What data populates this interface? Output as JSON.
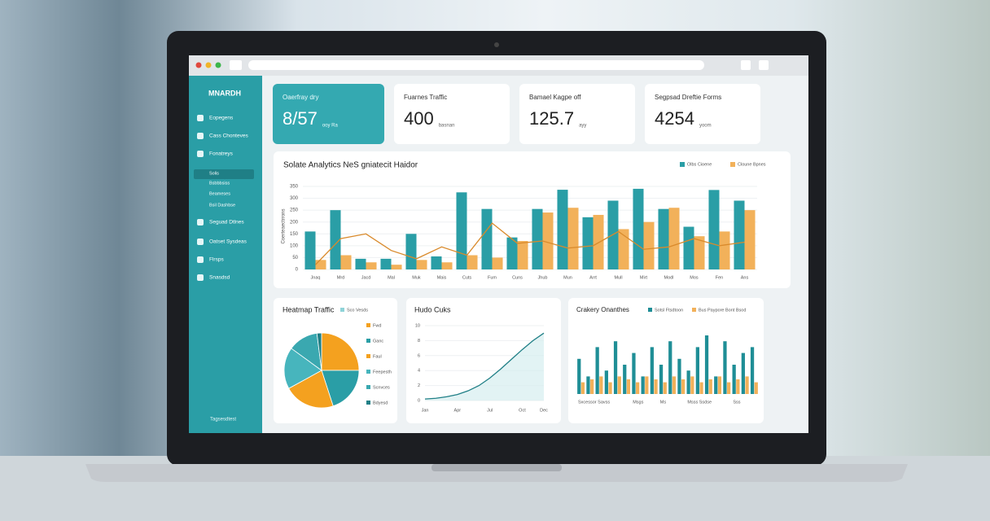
{
  "sidebar": {
    "logo": "MNARDH",
    "items": [
      "Eopegens",
      "Cass Chonteves",
      "Fonatreys",
      "Solis",
      "Bsbbbsiss",
      "Beameses",
      "Bsil Dashbse",
      "Seguad Dtlnes",
      "Oatset Sysdeas",
      "Flrsps",
      "Snasdsd"
    ],
    "footer": "Tagsesdtest"
  },
  "kpis": [
    {
      "label": "Oaerfray dry",
      "value": "8/57",
      "unit": "ooy Ra"
    },
    {
      "label": "Fuarnes Traffic",
      "value": "400",
      "unit": "basnan"
    },
    {
      "label": "Bamael Kagpe off",
      "value": "125.7",
      "unit": "ayy"
    },
    {
      "label": "Segpsad Dreftie Forms",
      "value": "4254",
      "unit": "yoom"
    }
  ],
  "chart_data": [
    {
      "type": "bar",
      "title": "Solate Analytics NeS gniatecit Haidor",
      "y_label": "Coerteaectrrons",
      "categories": [
        "Jnaq",
        "Mrd",
        "Jacd",
        "Mal",
        "Muk",
        "Mais",
        "Cuts",
        "Fum",
        "Cuns",
        "Jhub",
        "Mun",
        "Arrt",
        "Mull",
        "Mirt",
        "Modl",
        "Mos",
        "Fen",
        "Ans"
      ],
      "series": [
        {
          "name": "Olbs Cioene",
          "color": "#2a9ea6",
          "values": [
            160,
            250,
            45,
            45,
            150,
            55,
            325,
            255,
            135,
            255,
            336,
            220,
            290,
            340,
            255,
            180,
            335,
            290
          ]
        },
        {
          "name": "Cloune Bpnes",
          "color": "#f2b15a",
          "values": [
            40,
            60,
            30,
            20,
            40,
            30,
            60,
            50,
            120,
            240,
            260,
            230,
            170,
            200,
            260,
            140,
            160,
            250
          ]
        },
        {
          "type": "line",
          "color": "#d98a2b",
          "values": [
            20,
            130,
            150,
            80,
            45,
            95,
            60,
            195,
            110,
            120,
            90,
            100,
            160,
            85,
            95,
            130,
            100,
            115
          ]
        }
      ],
      "ylim": [
        0,
        350
      ],
      "yticks": [
        0,
        50,
        100,
        150,
        200,
        250,
        300,
        350
      ],
      "grid": true
    },
    {
      "type": "pie",
      "title": "Heatmap Traffic",
      "subtitle": "Sco Vesds",
      "categories": [
        "Fwd",
        "Ganc",
        "Faul",
        "Feepesth",
        "Scnvces",
        "Bdyesd"
      ],
      "values": [
        25,
        20,
        22,
        18,
        13,
        2
      ],
      "colors": [
        "#f4a11f",
        "#2a9ea6",
        "#f4a11f",
        "#47b5bd",
        "#3aa8b0",
        "#1f7f86"
      ]
    },
    {
      "type": "line",
      "title": "Hudo Cuks",
      "categories": [
        "Jan",
        null,
        null,
        "Apr",
        null,
        null,
        "Jul",
        null,
        null,
        "Oct",
        null,
        "Dec"
      ],
      "values": [
        0.2,
        0.3,
        0.5,
        0.8,
        1.3,
        2,
        3,
        4.2,
        5.5,
        6.8,
        8,
        9
      ],
      "color": "#1f7f86",
      "ylim": [
        0,
        10
      ],
      "yticks": [
        0,
        2,
        4,
        6,
        8,
        10
      ],
      "grid": true
    },
    {
      "type": "bar",
      "title": "Crakery Onanthes",
      "categories": [
        "Sxcessor Savss",
        null,
        null,
        null,
        null,
        null,
        "Msgs",
        null,
        null,
        "Ms",
        null,
        null,
        "Msss Ssdse",
        null,
        null,
        null,
        null,
        "Sss",
        null,
        null
      ],
      "series": [
        {
          "name": "Sotsl Ftsdtoon",
          "color": "#1f8e96",
          "values": [
            6,
            3,
            8,
            4,
            9,
            5,
            7,
            3,
            8,
            5,
            9,
            6,
            4,
            8,
            10,
            3,
            9,
            5,
            7,
            8
          ]
        },
        {
          "name": "Bus Paypore Bont Bsod",
          "color": "#f2b15a",
          "values": [
            2,
            2.5,
            3,
            2,
            3,
            2.5,
            2,
            3,
            2.5,
            2,
            3,
            2.5,
            3,
            2,
            2.5,
            3,
            2,
            2.5,
            3,
            2
          ]
        }
      ]
    }
  ]
}
